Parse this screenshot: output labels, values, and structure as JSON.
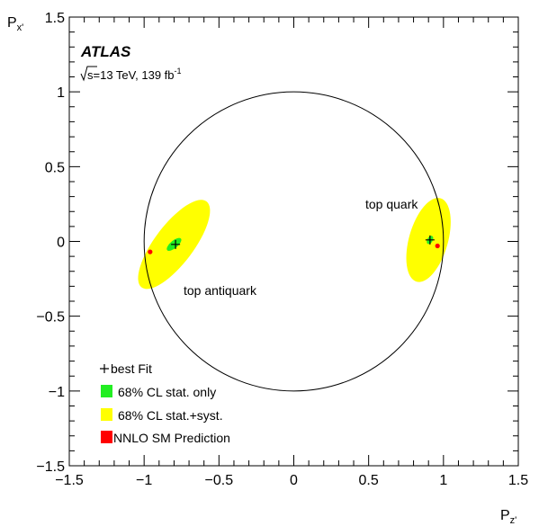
{
  "chart_data": {
    "type": "scatter",
    "experiment": "ATLAS",
    "energy_label_sqrt": "s",
    "energy_label_rest": "=13 TeV, 139 fb",
    "energy_label_sup": "-1",
    "xlabel_main": "P",
    "xlabel_sub": "z'",
    "ylabel_main": "P",
    "ylabel_sub": "x'",
    "xlim": [
      -1.5,
      1.5
    ],
    "ylim": [
      -1.5,
      1.5
    ],
    "xticks": [
      -1.5,
      -1,
      -0.5,
      0,
      0.5,
      1,
      1.5
    ],
    "xtick_labels": [
      "−1.5",
      "−1",
      "−0.5",
      "0",
      "0.5",
      "1",
      "1.5"
    ],
    "yticks": [
      -1.5,
      -1,
      -0.5,
      0,
      0.5,
      1,
      1.5
    ],
    "ytick_labels": [
      "−1.5",
      "−1",
      "−0.5",
      "0",
      "0.5",
      "1",
      "1.5"
    ],
    "unit_circle_radius": 1,
    "grid": false,
    "legend_placement": "bottom-left",
    "legend": [
      {
        "marker": "+",
        "label": "best Fit"
      },
      {
        "marker": "green-box",
        "label": "68% CL stat. only"
      },
      {
        "marker": "yellow-box",
        "label": "68% CL stat.+syst."
      },
      {
        "marker": "red-box",
        "label": "NNLO SM Prediction"
      }
    ],
    "colors": {
      "stat_only": "#22ee22",
      "stat_syst": "#ffff00",
      "sm_prediction": "#ff0000",
      "best_fit": "#000000",
      "circle": "#000000"
    },
    "series": [
      {
        "name": "top quark",
        "best_fit": {
          "x": 0.91,
          "y": 0.01
        },
        "sm_prediction": {
          "x": 0.96,
          "y": -0.03
        },
        "stat_only_ellipse": {
          "cx": 0.91,
          "cy": 0.01,
          "rx": 0.03,
          "ry": 0.018,
          "angle_deg": 60
        },
        "stat_syst_ellipse": {
          "cx": 0.9,
          "cy": 0.01,
          "rx": 0.29,
          "ry": 0.13,
          "angle_deg": 74
        }
      },
      {
        "name": "top antiquark",
        "best_fit": {
          "x": -0.79,
          "y": -0.02
        },
        "sm_prediction": {
          "x": -0.96,
          "y": -0.07
        },
        "stat_only_ellipse": {
          "cx": -0.8,
          "cy": -0.02,
          "rx": 0.06,
          "ry": 0.025,
          "angle_deg": 40
        },
        "stat_syst_ellipse": {
          "cx": -0.8,
          "cy": -0.02,
          "rx": 0.36,
          "ry": 0.13,
          "angle_deg": 53
        }
      }
    ],
    "annotations": [
      {
        "text": "top quark",
        "x": 0.65,
        "y": 0.23
      },
      {
        "text": "top antiquark",
        "x": -0.8,
        "y": -0.33
      }
    ]
  }
}
